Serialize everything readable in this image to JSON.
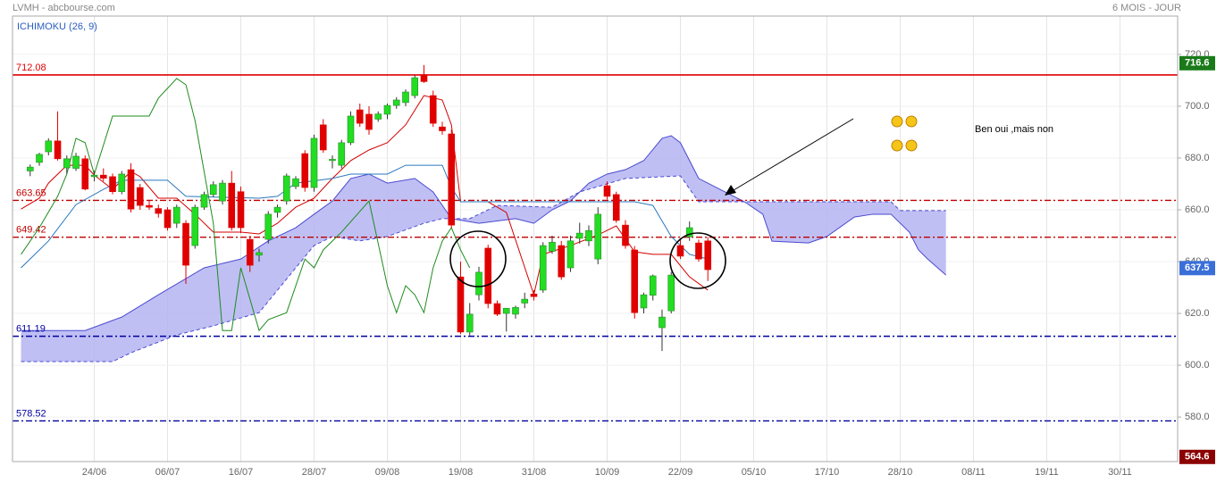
{
  "chart_data": {
    "type": "candlestick",
    "header_left": "LVMH - abcbourse.com",
    "header_right": "6 MOIS - JOUR",
    "indicator": "ICHIMOKU (26, 9)",
    "annotation": "Ben oui ,mais non",
    "up_color": "#22dd22",
    "down_color": "#e00000",
    "xlim": [
      -0.93,
      126.3
    ],
    "ylim": [
      562.8,
      734.8
    ],
    "xticks": [
      {
        "value": 8,
        "label": "24/06"
      },
      {
        "value": 16,
        "label": "06/07"
      },
      {
        "value": 24,
        "label": "16/07"
      },
      {
        "value": 32,
        "label": "28/07"
      },
      {
        "value": 40,
        "label": "09/08"
      },
      {
        "value": 48,
        "label": "19/08"
      },
      {
        "value": 56,
        "label": "31/08"
      },
      {
        "value": 64,
        "label": "10/09"
      },
      {
        "value": 72,
        "label": "22/09"
      },
      {
        "value": 80,
        "label": "05/10"
      },
      {
        "value": 88,
        "label": "17/10"
      },
      {
        "value": 96,
        "label": "28/10"
      },
      {
        "value": 104,
        "label": "08/11"
      },
      {
        "value": 112,
        "label": "19/11"
      },
      {
        "value": 120,
        "label": "30/11"
      }
    ],
    "yticks": [
      {
        "value": 580,
        "label": "580.0"
      },
      {
        "value": 600,
        "label": "600.0"
      },
      {
        "value": 620,
        "label": "620.0"
      },
      {
        "value": 640,
        "label": "640.0"
      },
      {
        "value": 660,
        "label": "660.0"
      },
      {
        "value": 680,
        "label": "680.0"
      },
      {
        "value": 700,
        "label": "700.0"
      },
      {
        "value": 720,
        "label": "720.0"
      }
    ],
    "grid": true,
    "candles": {
      "x": [
        1,
        2,
        3,
        4,
        5,
        6,
        7,
        8,
        9,
        10,
        11,
        12,
        13,
        14,
        15,
        16,
        17,
        18,
        19,
        20,
        21,
        22,
        23,
        24,
        25,
        26,
        27,
        28,
        29,
        30,
        31,
        32,
        33,
        34,
        35,
        36,
        37,
        38,
        39,
        40,
        41,
        42,
        43,
        44,
        45,
        46,
        47,
        48,
        49,
        50,
        51,
        52,
        53,
        54,
        55,
        56,
        57,
        58,
        59,
        60,
        61,
        62,
        63,
        64,
        65,
        66,
        67,
        68,
        69,
        70,
        71,
        72,
        73,
        74,
        75
      ],
      "open": [
        675,
        678.3,
        682.4,
        686.6,
        676.2,
        676,
        679.7,
        672.8,
        673.4,
        672.8,
        667,
        675.5,
        668.6,
        661.7,
        660.5,
        660,
        654.8,
        654.8,
        646.2,
        661,
        665.9,
        663.4,
        670.3,
        667,
        648.6,
        642.5,
        648.6,
        659,
        663.4,
        669,
        681.7,
        668.6,
        692.8,
        679,
        677.2,
        685.9,
        698.6,
        696.9,
        695,
        696.9,
        700.3,
        701.4,
        704.1,
        712,
        704.1,
        692,
        689.3,
        634.1,
        612.8,
        627.2,
        645.2,
        623.8,
        620,
        619.7,
        624,
        627.5,
        629,
        644,
        646.2,
        637.6,
        649,
        648,
        641,
        669.3,
        665.9,
        654.1,
        644.5,
        622.1,
        627,
        614.5,
        621,
        646.2,
        649.6,
        647.2,
        648
      ],
      "high": [
        677.5,
        682,
        687.6,
        698,
        681,
        682,
        681,
        675,
        676,
        674,
        675,
        678,
        670,
        663.5,
        662,
        661,
        662,
        656,
        662,
        667,
        671,
        671.5,
        675,
        669,
        650,
        645,
        659.5,
        662,
        674,
        673,
        683,
        689,
        695,
        681,
        687,
        698,
        701,
        700,
        698,
        701,
        703.5,
        706.5,
        712,
        715.9,
        706,
        694,
        691,
        640,
        624,
        638,
        646.5,
        625,
        622,
        623,
        628,
        629,
        647.5,
        650,
        648,
        650,
        655,
        654,
        661,
        671,
        667,
        656,
        646,
        628,
        635,
        621.5,
        636,
        649,
        655.5,
        648.5,
        649.5
      ],
      "low": [
        673,
        677,
        681,
        679,
        674,
        675,
        667.5,
        671,
        671,
        666,
        666,
        659,
        660,
        660,
        657,
        652,
        653,
        631.4,
        645,
        660,
        665,
        662,
        652,
        651,
        636,
        640,
        647,
        657,
        662,
        668,
        667,
        667,
        682,
        676,
        676,
        685,
        692,
        689,
        694,
        695,
        699,
        700,
        703,
        709,
        692,
        689,
        653,
        612,
        611.5,
        625,
        622,
        619,
        613,
        618,
        622,
        625,
        628,
        643,
        633,
        636,
        647,
        646,
        639,
        664,
        655,
        645,
        618,
        620,
        625,
        605.5,
        620,
        641,
        648,
        640,
        632.5
      ],
      "close": [
        676.5,
        681.4,
        686.6,
        679.7,
        679.7,
        680.7,
        668,
        673.4,
        672.2,
        667,
        673.8,
        660.3,
        661.7,
        661,
        658.6,
        653.1,
        661,
        638.6,
        661,
        665.9,
        669.7,
        670.3,
        653.1,
        653.1,
        638.6,
        643.5,
        658.3,
        661,
        673.1,
        672,
        668.6,
        687.6,
        683.1,
        679.5,
        685.9,
        696.2,
        693.4,
        691,
        697,
        700.3,
        702.4,
        705.5,
        711,
        709.5,
        693.4,
        690.5,
        654.1,
        612.8,
        619.7,
        635.9,
        623.8,
        619.7,
        622,
        622.3,
        625.5,
        626.5,
        646.2,
        647.5,
        634.1,
        648,
        651,
        652,
        658.3,
        665.2,
        655.9,
        646.2,
        620.3,
        627.2,
        634.5,
        618.6,
        634.8,
        642.1,
        653.1,
        641,
        636.9
      ]
    },
    "cloud": {
      "fill": "#b4b4f2",
      "edge": "#4a4ad0",
      "span_a": {
        "x": [
          0,
          7,
          11,
          15,
          20,
          24,
          27,
          30,
          32,
          34,
          36,
          38,
          40,
          43,
          45,
          47,
          50,
          54,
          56,
          58,
          60,
          62,
          64,
          66,
          68,
          70,
          71,
          72,
          74,
          79,
          81,
          82,
          86,
          88,
          91,
          93,
          95,
          97,
          98,
          99,
          101
        ],
        "values": [
          613.4,
          613.4,
          618.6,
          627.2,
          637.6,
          641,
          648,
          653.1,
          658.3,
          663.4,
          672.1,
          673.8,
          670.3,
          672.1,
          666.9,
          656.6,
          654.8,
          656.6,
          654.8,
          660,
          663.4,
          670.3,
          673.8,
          675.5,
          679,
          687.6,
          688.6,
          685.9,
          672.1,
          663.1,
          658.3,
          647.9,
          647.2,
          649.7,
          657.2,
          658.3,
          658.3,
          651.4,
          644.5,
          641,
          634.8
        ]
      },
      "span_b": {
        "x": [
          0,
          10,
          12,
          17,
          21,
          26,
          30,
          32,
          34,
          37,
          40,
          44,
          46,
          49,
          52,
          58,
          61,
          66,
          72,
          74,
          95,
          96,
          101
        ],
        "values": [
          601.4,
          601.4,
          604.8,
          611.7,
          615.2,
          620.3,
          637.6,
          646.2,
          649.7,
          648,
          649.7,
          654.8,
          656.6,
          656.6,
          661.7,
          661,
          666.9,
          672.1,
          673.1,
          663.1,
          663.1,
          659.7,
          659.7
        ]
      }
    },
    "lines": [
      {
        "color": "#d40000",
        "x": [
          0,
          2,
          3,
          5,
          7,
          8,
          10,
          12,
          13,
          15,
          17,
          19,
          21,
          24,
          26,
          28,
          30,
          32,
          34,
          36,
          38,
          40,
          42,
          44,
          46,
          47,
          48,
          51,
          53,
          56,
          57,
          60,
          63,
          65,
          67,
          69,
          71,
          73,
          75
        ],
        "values": [
          660.3,
          664.5,
          670.3,
          677.2,
          677.2,
          673.4,
          667.9,
          674.8,
          672.8,
          664.5,
          664.5,
          658.3,
          651.4,
          651.4,
          650.7,
          654.8,
          661,
          664.5,
          672.1,
          679,
          683.1,
          685.9,
          692.8,
          704.1,
          702.4,
          692.8,
          663.1,
          663.1,
          659,
          627.2,
          642.8,
          646.2,
          650.3,
          653.8,
          643.8,
          642.8,
          642.8,
          634.1,
          629
        ]
      },
      {
        "color": "#2a78c0",
        "x": [
          0,
          2,
          3,
          6,
          9,
          11,
          16,
          18,
          26,
          28,
          30,
          34,
          36,
          40,
          42,
          46,
          47,
          48,
          67,
          69,
          71,
          73,
          75
        ],
        "values": [
          637.6,
          644.5,
          648,
          662,
          667.9,
          671.4,
          671.4,
          665.2,
          664.5,
          665.2,
          670.3,
          672.1,
          673.8,
          673.8,
          677.2,
          677.2,
          668.6,
          663.1,
          663.1,
          661.7,
          649.7,
          642.8,
          641
        ]
      },
      {
        "color": "#1e8c1e",
        "x": [
          0,
          2,
          4,
          5,
          6,
          7,
          8,
          10,
          12,
          14,
          15,
          17,
          18,
          19,
          21,
          22,
          23,
          24,
          26,
          27,
          29,
          31,
          32,
          33,
          35,
          38,
          40,
          41,
          42,
          43,
          44,
          45,
          46,
          47,
          48,
          49
        ],
        "values": [
          642.8,
          653.1,
          665.2,
          673.8,
          687.6,
          685.9,
          673.8,
          696.2,
          696.2,
          696.2,
          703.1,
          710.7,
          708.3,
          694.5,
          654.8,
          613.4,
          613.4,
          637.6,
          613.4,
          617.6,
          620.3,
          641,
          637.6,
          644.5,
          651.4,
          663.4,
          630.7,
          620.3,
          630.7,
          627.2,
          620.3,
          637.6,
          647.9,
          653.1,
          644.5,
          637.6
        ]
      }
    ],
    "levels": [
      {
        "value": 712.08,
        "color": "#e00000",
        "style": "solid"
      },
      {
        "value": 663.65,
        "color": "#c00000",
        "style": "dashdot"
      },
      {
        "value": 649.42,
        "color": "#c00000",
        "style": "dashdot"
      },
      {
        "value": 611.19,
        "color": "#0000a0",
        "style": "dashdot"
      },
      {
        "value": 578.52,
        "color": "#0000a0",
        "style": "dashdot"
      }
    ],
    "tags": [
      {
        "value": 716.6,
        "color": "#1a7a1a"
      },
      {
        "value": 637.5,
        "color": "#3a6fd8"
      },
      {
        "value": 564.6,
        "color": "#8b0000"
      }
    ]
  }
}
